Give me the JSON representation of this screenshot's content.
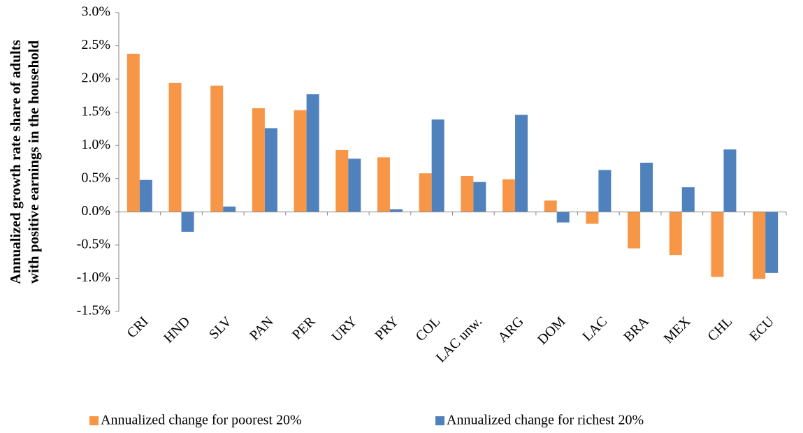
{
  "chart_data": {
    "type": "bar",
    "y_label_lines": [
      "Annualized growth rate share of adults",
      "with positive earnings in the household"
    ],
    "categories": [
      "CRI",
      "HND",
      "SLV",
      "PAN",
      "PER",
      "URY",
      "PRY",
      "COL",
      "LAC unw.",
      "ARG",
      "DOM",
      "LAC",
      "BRA",
      "MEX",
      "CHL",
      "ECU"
    ],
    "series": [
      {
        "name": "Annualized change for poorest 20%",
        "color": "#f79646",
        "values": [
          2.38,
          1.94,
          1.9,
          1.56,
          1.53,
          0.93,
          0.82,
          0.58,
          0.54,
          0.49,
          0.17,
          -0.18,
          -0.55,
          -0.65,
          -0.98,
          -1.01
        ]
      },
      {
        "name": "Annualized change for richest 20%",
        "color": "#4f81bd",
        "values": [
          0.48,
          -0.3,
          0.08,
          1.26,
          1.77,
          0.8,
          0.04,
          1.39,
          0.45,
          1.46,
          -0.16,
          0.63,
          0.74,
          0.37,
          0.94,
          -0.92
        ]
      }
    ],
    "ylim": [
      -1.5,
      3.0
    ],
    "yticks": [
      {
        "value": -1.5,
        "label": "-1.5%"
      },
      {
        "value": -1.0,
        "label": "-1.0%"
      },
      {
        "value": -0.5,
        "label": "-0.5%"
      },
      {
        "value": 0,
        "label": "0.0%"
      },
      {
        "value": 0.5,
        "label": "0.5%"
      },
      {
        "value": 1.0,
        "label": "1.0%"
      },
      {
        "value": 1.5,
        "label": "1.5%"
      },
      {
        "value": 2.0,
        "label": "2.0%"
      },
      {
        "value": 2.5,
        "label": "2.5%"
      },
      {
        "value": 3.0,
        "label": "3.0%"
      }
    ],
    "grid": false,
    "legend": "bottom"
  }
}
